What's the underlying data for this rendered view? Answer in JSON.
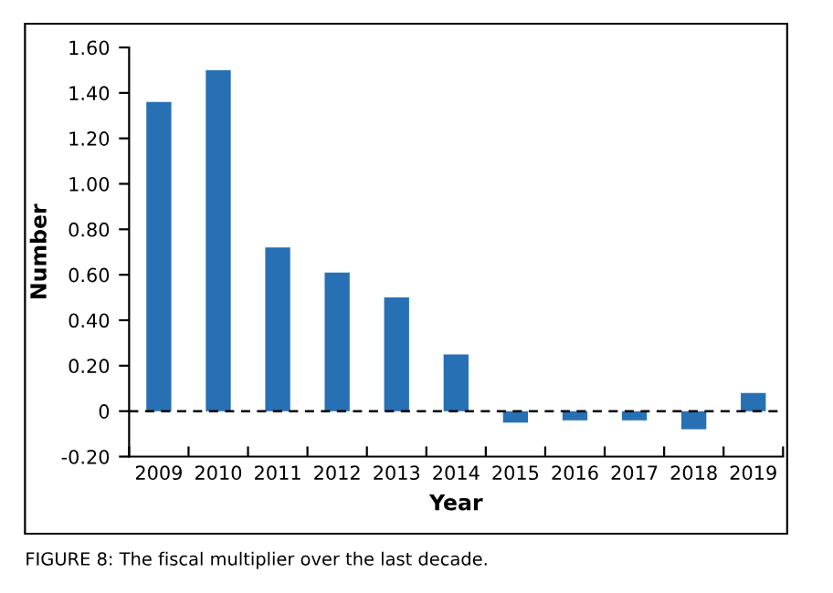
{
  "chart_data": {
    "type": "bar",
    "xlabel": "Year",
    "ylabel": "Number",
    "categories": [
      "2009",
      "2010",
      "2011",
      "2012",
      "2013",
      "2014",
      "2015",
      "2016",
      "2017",
      "2018",
      "2019"
    ],
    "values": [
      1.36,
      1.5,
      0.72,
      0.61,
      0.5,
      0.25,
      -0.05,
      -0.04,
      -0.04,
      -0.08,
      0.08
    ],
    "color": "#2870b4",
    "ylim": [
      -0.2,
      1.6
    ],
    "yticks": [
      {
        "value": -0.2,
        "label": "-0.20"
      },
      0,
      {
        "value": 0.2,
        "label": "0.20"
      },
      {
        "value": 0.4,
        "label": "0.40"
      },
      {
        "value": 0.6,
        "label": "0.60"
      },
      {
        "value": 0.8,
        "label": "0.80"
      },
      {
        "value": 1.0,
        "label": "1.00"
      },
      {
        "value": 1.2,
        "label": "1.20"
      },
      {
        "value": 1.4,
        "label": "1.40"
      },
      {
        "value": 1.6,
        "label": "1.60"
      }
    ],
    "ref_lines": [
      {
        "axis": "y",
        "value": 0,
        "line_style": "dashed",
        "color": "#000000"
      }
    ],
    "grid": false,
    "legend": false,
    "annotations": [
      "FIGURE 8: The fiscal multiplier over the last decade."
    ]
  }
}
